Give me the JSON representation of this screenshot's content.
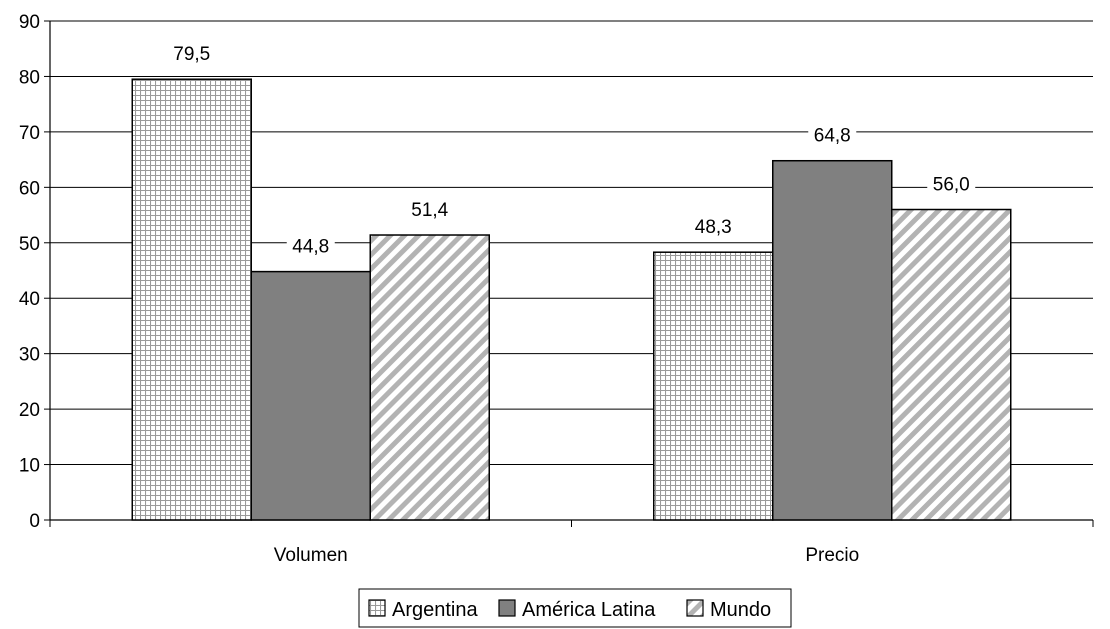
{
  "chart_data": {
    "type": "bar",
    "categories": [
      "Volumen",
      "Precio"
    ],
    "series": [
      {
        "name": "Argentina",
        "values": [
          79.5,
          48.3
        ],
        "pattern": "grid",
        "color": "#b3b3b3"
      },
      {
        "name": "América Latina",
        "values": [
          44.8,
          64.8
        ],
        "pattern": "solid",
        "color": "#808080"
      },
      {
        "name": "Mundo",
        "values": [
          51.4,
          56.0
        ],
        "pattern": "diagonal",
        "color": "#b3b3b3"
      }
    ],
    "value_labels": [
      [
        "79,5",
        "48,3"
      ],
      [
        "44,8",
        "64,8"
      ],
      [
        "51,4",
        "56,0"
      ]
    ],
    "ylim": [
      0,
      90
    ],
    "yticks": [
      "0",
      "10",
      "20",
      "30",
      "40",
      "50",
      "60",
      "70",
      "80",
      "90"
    ],
    "grid": true,
    "legend_position": "bottom",
    "title": "",
    "xlabel": "",
    "ylabel": ""
  }
}
